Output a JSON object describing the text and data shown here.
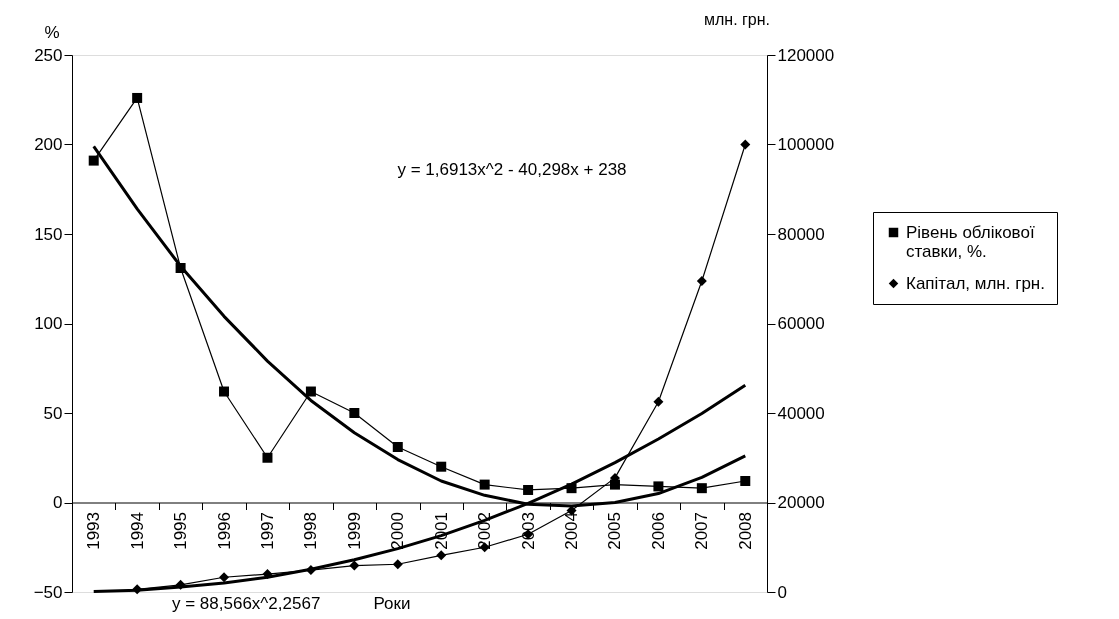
{
  "chart_data": {
    "type": "line",
    "xlabel": "Роки",
    "ylabel": "%",
    "y2label": "млн. грн.",
    "categories": [
      "1993",
      "1994",
      "1995",
      "1996",
      "1997",
      "1998",
      "1999",
      "2000",
      "2001",
      "2002",
      "2003",
      "2004",
      "2005",
      "2006",
      "2007",
      "2008"
    ],
    "series": [
      {
        "type": "line",
        "color": "#000000",
        "marker": "none",
        "values": [
          199,
          164,
          132,
          104,
          79,
          57,
          39,
          24,
          12,
          4,
          -1,
          -2,
          0,
          5,
          14,
          26
        ]
      },
      {
        "type": "line",
        "color": "#000000",
        "marker": "none",
        "axis": "y2",
        "values": [
          100,
          400,
          1100,
          2000,
          3300,
          5100,
          7200,
          9700,
          12600,
          16000,
          19800,
          24100,
          28900,
          34200,
          39900,
          46200
        ]
      },
      {
        "name": "Рівень облікової ставки,  %.",
        "color": "#000000",
        "marker": "square",
        "values": [
          191,
          226,
          131,
          62,
          25,
          62,
          50,
          31,
          20,
          10,
          7,
          8,
          10,
          9,
          8,
          12
        ]
      },
      {
        "name": "Капітал, млн. грн.",
        "color": "#000000",
        "marker": "diamond",
        "axis": "y2",
        "values": [
          null,
          600,
          1600,
          3300,
          4000,
          4900,
          5900,
          6200,
          8200,
          10000,
          12900,
          18200,
          25500,
          42500,
          69500,
          100000
        ]
      }
    ],
    "ylim": [
      -50,
      250
    ],
    "yticks": [
      -50,
      0,
      50,
      100,
      150,
      200,
      250
    ],
    "y2lim": [
      0,
      120000
    ],
    "y2ticks": [
      0,
      20000,
      40000,
      60000,
      80000,
      100000,
      120000
    ],
    "annotations": [
      "y = 1,6913x^2 - 40,298x + 238",
      "y = 88,566x^2,2567"
    ],
    "grid": false,
    "legend": "right"
  }
}
